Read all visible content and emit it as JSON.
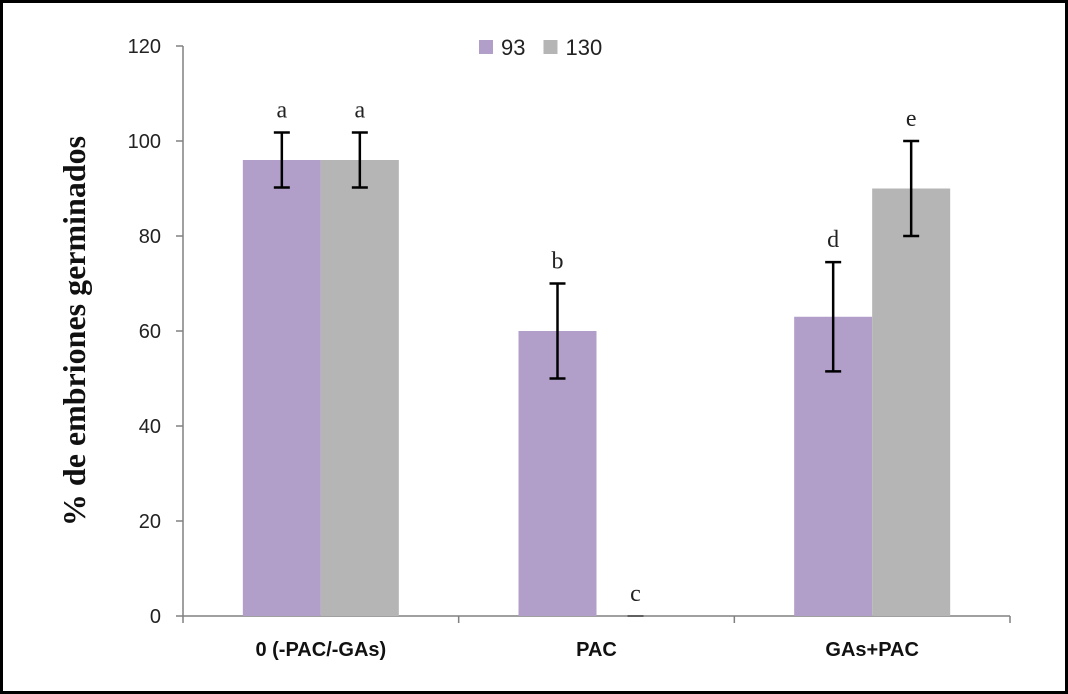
{
  "chart_data": {
    "type": "bar",
    "categories": [
      "0 (-PAC/-GAs)",
      "PAC",
      "GAs+PAC"
    ],
    "series": [
      {
        "name": "93",
        "values": [
          96,
          60,
          63
        ],
        "errors": [
          5.8,
          10,
          11.5
        ],
        "labels": [
          "a",
          "b",
          "d"
        ],
        "color": "#b19fca"
      },
      {
        "name": "130",
        "values": [
          96,
          0,
          90
        ],
        "errors": [
          5.8,
          0,
          10
        ],
        "labels": [
          "a",
          "c",
          "e"
        ],
        "color": "#b5b5b5"
      }
    ],
    "ylabel": "% de embriones germinados",
    "xlabel": "",
    "ylim": [
      0,
      120
    ],
    "yticks": [
      0,
      20,
      40,
      60,
      80,
      100,
      120
    ],
    "grid": false,
    "legend_position": "top-center"
  }
}
